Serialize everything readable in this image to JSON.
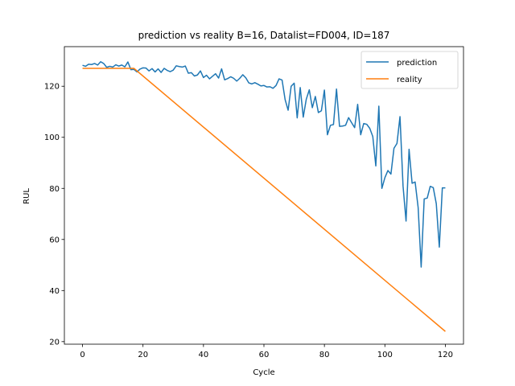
{
  "chart_data": {
    "type": "line",
    "title": "prediction vs reality B=16, Datalist=FD004, ID=187",
    "xlabel": "Cycle",
    "ylabel": "RUL",
    "xlim": [
      -6,
      126
    ],
    "ylim": [
      19,
      135.5
    ],
    "xticks": [
      0,
      20,
      40,
      60,
      80,
      100,
      120
    ],
    "yticks": [
      20,
      40,
      60,
      80,
      100,
      120
    ],
    "grid": false,
    "legend": "top-right",
    "series": [
      {
        "name": "prediction",
        "color": "#1f77b4",
        "x": [
          0,
          1,
          2,
          3,
          4,
          5,
          6,
          7,
          8,
          9,
          10,
          11,
          12,
          13,
          14,
          15,
          16,
          17,
          18,
          19,
          20,
          21,
          22,
          23,
          24,
          25,
          26,
          27,
          28,
          29,
          30,
          31,
          32,
          33,
          34,
          35,
          36,
          37,
          38,
          39,
          40,
          41,
          42,
          43,
          44,
          45,
          46,
          47,
          48,
          49,
          50,
          51,
          52,
          53,
          54,
          55,
          56,
          57,
          58,
          59,
          60,
          61,
          62,
          63,
          64,
          65,
          66,
          67,
          68,
          69,
          70,
          71,
          72,
          73,
          74,
          75,
          76,
          77,
          78,
          79,
          80,
          81,
          82,
          83,
          84,
          85,
          86,
          87,
          88,
          89,
          90,
          91,
          92,
          93,
          94,
          95,
          96,
          97,
          98,
          99,
          100,
          101,
          102,
          103,
          104,
          105,
          106,
          107,
          108,
          109,
          110,
          111,
          112,
          113,
          114,
          115,
          116,
          117,
          118,
          119,
          120
        ],
        "values": [
          128.2,
          127.8,
          128.6,
          128.5,
          128.9,
          128.3,
          129.6,
          128.9,
          127.4,
          127.8,
          127.5,
          128.4,
          127.9,
          128.3,
          127.6,
          129.5,
          126.5,
          126.6,
          125.6,
          126.7,
          127.2,
          127.1,
          126.0,
          126.9,
          125.6,
          126.8,
          125.4,
          127.0,
          126.2,
          125.7,
          126.3,
          128.0,
          127.7,
          127.5,
          127.9,
          125.1,
          125.3,
          124.0,
          124.4,
          126.0,
          123.4,
          124.3,
          122.9,
          123.9,
          124.9,
          123.2,
          126.8,
          122.5,
          123.0,
          123.7,
          123.1,
          122.0,
          123.1,
          124.5,
          123.3,
          121.3,
          120.9,
          121.4,
          120.8,
          120.1,
          120.3,
          119.7,
          119.8,
          119.2,
          120.3,
          122.9,
          122.4,
          114.8,
          110.6,
          120.0,
          121.2,
          107.6,
          119.5,
          107.9,
          114.9,
          118.6,
          111.6,
          116.0,
          109.7,
          110.4,
          118.5,
          101.0,
          104.7,
          105.0,
          118.9,
          104.3,
          104.4,
          104.7,
          107.7,
          105.7,
          103.8,
          112.9,
          101.0,
          105.4,
          105.1,
          103.5,
          100.3,
          88.8,
          112.2,
          80.0,
          84.2,
          87.0,
          85.6,
          95.7,
          97.6,
          108.1,
          81.0,
          67.2,
          95.3,
          82.0,
          82.5,
          72.5,
          49.2,
          75.9,
          76.2,
          80.8,
          80.3,
          74.0,
          57.0,
          80.2,
          80.2
        ],
        "note_last": "series ends at x=120"
      },
      {
        "name": "reality",
        "color": "#ff7f0e",
        "x": [
          0,
          17,
          120
        ],
        "values": [
          127,
          127,
          24
        ]
      }
    ]
  }
}
